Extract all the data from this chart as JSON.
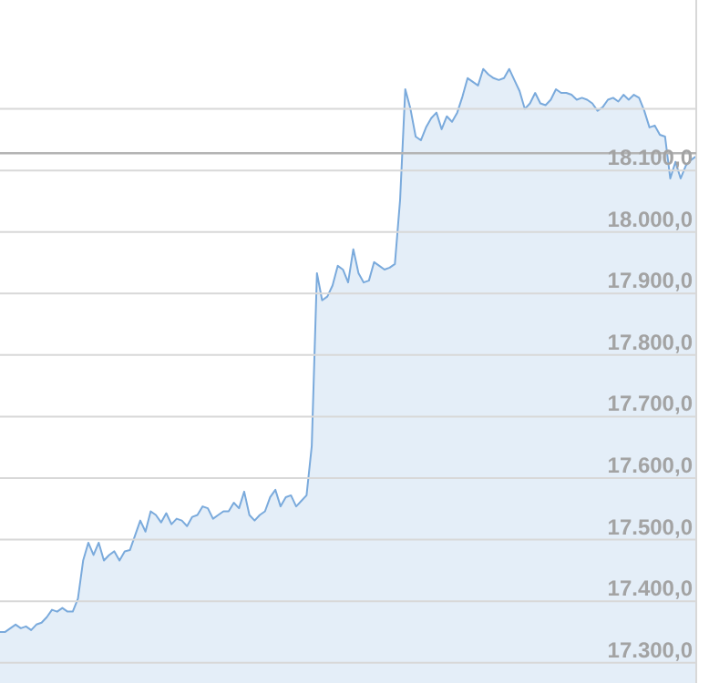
{
  "chart_data": {
    "type": "area",
    "categories": [
      null,
      null,
      null,
      null,
      null,
      null,
      null,
      null,
      null,
      null,
      null,
      null,
      null,
      null,
      null,
      null,
      null,
      null,
      null,
      null,
      null,
      null,
      null,
      null,
      null,
      null,
      null,
      null,
      null,
      null,
      null,
      null,
      null,
      null,
      null,
      null,
      null,
      null,
      null,
      null,
      null,
      null,
      null,
      null,
      null,
      null,
      null,
      null,
      null,
      null,
      null,
      null,
      null,
      null,
      null,
      null,
      null,
      null,
      null,
      null,
      null,
      null,
      null,
      null,
      null,
      null,
      null,
      null,
      null,
      null,
      null,
      null,
      null,
      null,
      null,
      null,
      null,
      null,
      null,
      null,
      null,
      null,
      null,
      null,
      null,
      null,
      null,
      null,
      null,
      null,
      null,
      null,
      null,
      null,
      null,
      null,
      null,
      null,
      null,
      null,
      null,
      null,
      null,
      null,
      null,
      null,
      null,
      null,
      null,
      null,
      null,
      null,
      null,
      null,
      null,
      null,
      null,
      null,
      null,
      null,
      null,
      null,
      null,
      null,
      null,
      null,
      null,
      null,
      null,
      null,
      null,
      null,
      null,
      null,
      null
    ],
    "series": [
      {
        "color": "#7aaadc",
        "values": [
          17350,
          17350,
          17356,
          17362,
          17356,
          17359,
          17353,
          17362,
          17365,
          17374,
          17386,
          17383,
          17389,
          17383,
          17383,
          17404,
          17466,
          17495,
          17475,
          17495,
          17466,
          17475,
          17481,
          17466,
          17481,
          17483,
          17507,
          17531,
          17513,
          17546,
          17540,
          17528,
          17543,
          17525,
          17534,
          17531,
          17522,
          17537,
          17540,
          17554,
          17551,
          17534,
          17540,
          17546,
          17546,
          17560,
          17551,
          17578,
          17540,
          17531,
          17540,
          17546,
          17569,
          17581,
          17554,
          17569,
          17572,
          17554,
          17563,
          17572,
          17652,
          17933,
          17889,
          17895,
          17913,
          17945,
          17939,
          17918,
          17972,
          17933,
          17918,
          17921,
          17951,
          17945,
          17939,
          17942,
          17948,
          18052,
          18232,
          18200,
          18155,
          18149,
          18170,
          18185,
          18194,
          18167,
          18188,
          18179,
          18194,
          18220,
          18250,
          18244,
          18238,
          18265,
          18256,
          18250,
          18247,
          18250,
          18265,
          18247,
          18229,
          18200,
          18209,
          18226,
          18209,
          18206,
          18215,
          18232,
          18226,
          18226,
          18223,
          18215,
          18218,
          18215,
          18209,
          18197,
          18203,
          18215,
          18218,
          18212,
          18223,
          18215,
          18223,
          18218,
          18197,
          18170,
          18173,
          18158,
          18155,
          18087,
          18114,
          18087,
          18108,
          18117,
          18123
        ]
      }
    ],
    "ylim": [
      17267,
      18377
    ],
    "yticks": [
      {
        "value": 17300,
        "label": "17.300,0"
      },
      {
        "value": 17400,
        "label": "17.400,0"
      },
      {
        "value": 17500,
        "label": "17.500,0"
      },
      {
        "value": 17600,
        "label": "17.600,0"
      },
      {
        "value": 17700,
        "label": "17.700,0"
      },
      {
        "value": 17800,
        "label": "17.800,0"
      },
      {
        "value": 17900,
        "label": "17.900,0"
      },
      {
        "value": 18000,
        "label": "18.000,0"
      },
      {
        "value": 18100,
        "label": "18.100,0"
      },
      {
        "value": 18200,
        "label": null
      }
    ],
    "grid": "y",
    "tick_labels": "y",
    "ref_lines": [
      {
        "axis": "y",
        "value": 18128,
        "color": "#b4b4b4"
      }
    ]
  }
}
